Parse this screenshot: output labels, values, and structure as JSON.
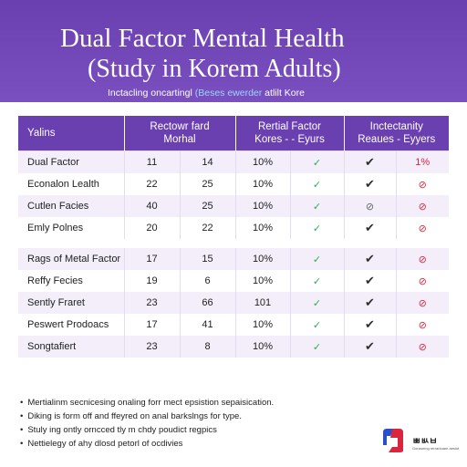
{
  "header": {
    "title_line1": "Dual Factor Mental Health",
    "title_line2": "(Study in Korem Adults)",
    "subtitle_pre": "Inctacling oncartingl ",
    "subtitle_highlight": "(Beses ewerder",
    "subtitle_post": " atlilt Kore"
  },
  "table": {
    "columns": [
      "Yalins",
      "Rectowr fard Morhal",
      "Rertial Factor Kores - - Eyurs",
      "Inctectanity Reaues - Eyyers"
    ],
    "rows": [
      {
        "label": "Dual Factor",
        "a": "11",
        "b": "14",
        "pct": "10%",
        "s1": "ok",
        "s2": "check",
        "s3": "warn",
        "s3_text": "1%"
      },
      {
        "label": "Econalon Lealth",
        "a": "22",
        "b": "25",
        "pct": "10%",
        "s1": "ok",
        "s2": "check",
        "s3": "warn"
      },
      {
        "label": "Cutlen Facies",
        "a": "40",
        "b": "25",
        "pct": "10%",
        "s1": "ok",
        "s2": "neutral",
        "s3": "warn"
      },
      {
        "label": "Emly Polnes",
        "a": "20",
        "b": "22",
        "pct": "10%",
        "s1": "ok",
        "s2": "check",
        "s3": "warn"
      },
      {
        "label": "Rags of Metal Factor",
        "a": "17",
        "b": "15",
        "pct": "10%",
        "s1": "ok",
        "s2": "check",
        "s3": "warn"
      },
      {
        "label": "Reffy Fecies",
        "a": "19",
        "b": "6",
        "pct": "10%",
        "s1": "ok",
        "s2": "check",
        "s3": "warn"
      },
      {
        "label": "Sently Fraret",
        "a": "23",
        "b": "66",
        "pct": "101",
        "s1": "ok",
        "s2": "check",
        "s3": "warn"
      },
      {
        "label": "Peswert Prodoacs",
        "a": "17",
        "b": "41",
        "pct": "10%",
        "s1": "ok",
        "s2": "check",
        "s3": "warn"
      },
      {
        "label": "Songtafiert",
        "a": "23",
        "b": "8",
        "pct": "10%",
        "s1": "ok",
        "s2": "check",
        "s3": "warn"
      }
    ]
  },
  "notes": [
    "Mertialinm secnicesing onaling forr mect epsistion sepaisication.",
    "Diking is form off and ffeyred on anal barkslngs for type.",
    "Stuly ing ontly orncced tly m chdy poudict regpics",
    "Nettielegy of ahy dlosd petorl of ocdivies"
  ],
  "brand": {
    "name": "ㅃㅄㅂ",
    "tagline": "Gonaunng rerrarkoam aesiut"
  },
  "colors": {
    "purple": "#6a3fb0",
    "ok": "#2eaa55",
    "warn": "#d2283c"
  },
  "icons": {
    "ok": "✓",
    "check": "✔",
    "neutral": "⊘",
    "warn": "⊘"
  }
}
